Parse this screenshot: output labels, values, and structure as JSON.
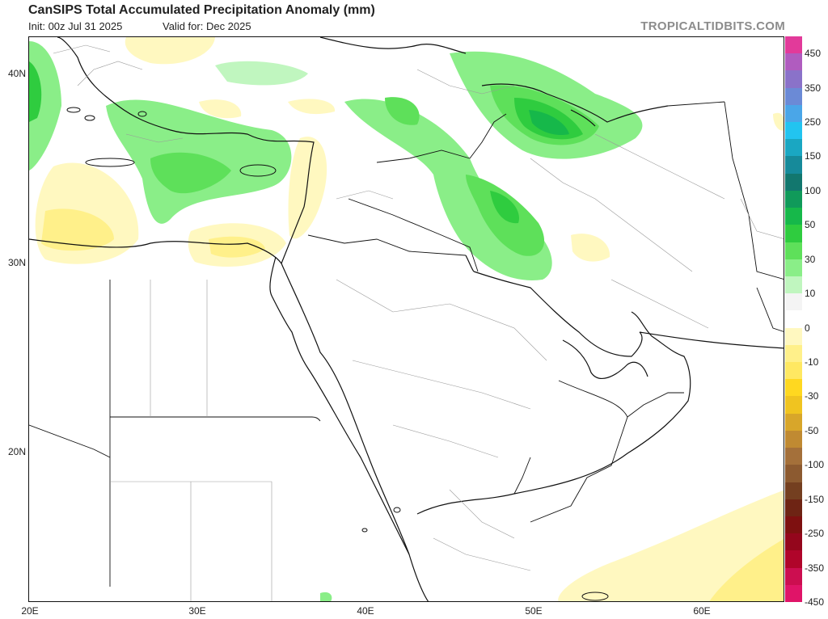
{
  "header": {
    "title": "CanSIPS Total Accumulated Precipitation Anomaly (mm)",
    "init": "Init: 00z Jul 31 2025",
    "valid": "Valid for: Dec 2025",
    "brand": "TROPICALTIDBITS.COM"
  },
  "axes": {
    "lat_labels": [
      "40N",
      "30N",
      "20N"
    ],
    "lon_labels": [
      "20E",
      "30E",
      "40E",
      "50E",
      "60E"
    ]
  },
  "colorbar": {
    "labels": [
      "450",
      "350",
      "250",
      "150",
      "100",
      "50",
      "30",
      "10",
      "0",
      "-10",
      "-30",
      "-50",
      "-100",
      "-150",
      "-250",
      "-350",
      "-450"
    ],
    "colors": [
      "#e23a9a",
      "#b05cbf",
      "#8a72c9",
      "#6b8ad6",
      "#4aa6e8",
      "#22c4f0",
      "#1aa7c2",
      "#168a9a",
      "#12776e",
      "#109a5a",
      "#16b84a",
      "#2fcc3f",
      "#5ee05a",
      "#8aee88",
      "#c0f6bf",
      "#f4f4f4",
      "#ffffff",
      "#fff8c0",
      "#fff08a",
      "#ffe862",
      "#ffd820",
      "#f0c420",
      "#d8a62a",
      "#c08a32",
      "#a4703a",
      "#8c5a30",
      "#743f20",
      "#6e2414",
      "#7e1010",
      "#94061c",
      "#b0052a",
      "#cc0e50",
      "#e01468"
    ]
  }
}
